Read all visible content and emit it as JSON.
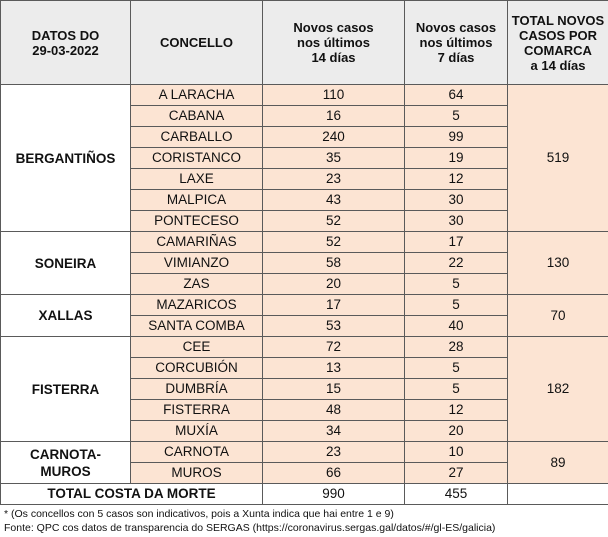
{
  "header": {
    "columns": [
      "DATOS DO\n29-03-2022",
      "CONCELLO",
      "Novos casos\nnos últimos\n14 días",
      "Novos casos\nnos últimos\n7 días",
      "TOTAL NOVOS\nCASOS POR\nCOMARCA\na 14 días"
    ]
  },
  "groups": [
    {
      "comarca": "BERGANTIÑOS",
      "total": 519,
      "rows": [
        [
          "A LARACHA",
          110,
          64
        ],
        [
          "CABANA",
          16,
          5
        ],
        [
          "CARBALLO",
          240,
          99
        ],
        [
          "CORISTANCO",
          35,
          19
        ],
        [
          "LAXE",
          23,
          12
        ],
        [
          "MALPICA",
          43,
          30
        ],
        [
          "PONTECESO",
          52,
          30
        ]
      ]
    },
    {
      "comarca": "SONEIRA",
      "total": 130,
      "rows": [
        [
          "CAMARIÑAS",
          52,
          17
        ],
        [
          "VIMIANZO",
          58,
          22
        ],
        [
          "ZAS",
          20,
          5
        ]
      ]
    },
    {
      "comarca": "XALLAS",
      "total": 70,
      "rows": [
        [
          "MAZARICOS",
          17,
          5
        ],
        [
          "SANTA COMBA",
          53,
          40
        ]
      ]
    },
    {
      "comarca": "FISTERRA",
      "total": 182,
      "rows": [
        [
          "CEE",
          72,
          28
        ],
        [
          "CORCUBIÓN",
          13,
          5
        ],
        [
          "DUMBRÍA",
          15,
          5
        ],
        [
          "FISTERRA",
          48,
          12
        ],
        [
          "MUXÍA",
          34,
          20
        ]
      ]
    },
    {
      "comarca": "CARNOTA-\nMUROS",
      "total": 89,
      "rows": [
        [
          "CARNOTA",
          23,
          10
        ],
        [
          "MUROS",
          66,
          27
        ]
      ]
    }
  ],
  "footer": {
    "label": "TOTAL COSTA DA MORTE",
    "total14": 990,
    "total7": 455
  },
  "notes": [
    "* (Os concellos con 5 casos son indicativos, pois a Xunta indica que hai entre 1 e 9)",
    "Fonte: QPC cos datos de transparencia do SERGAS (https://coronavirus.sergas.gal/datos/#/gl-ES/galicia)"
  ]
}
